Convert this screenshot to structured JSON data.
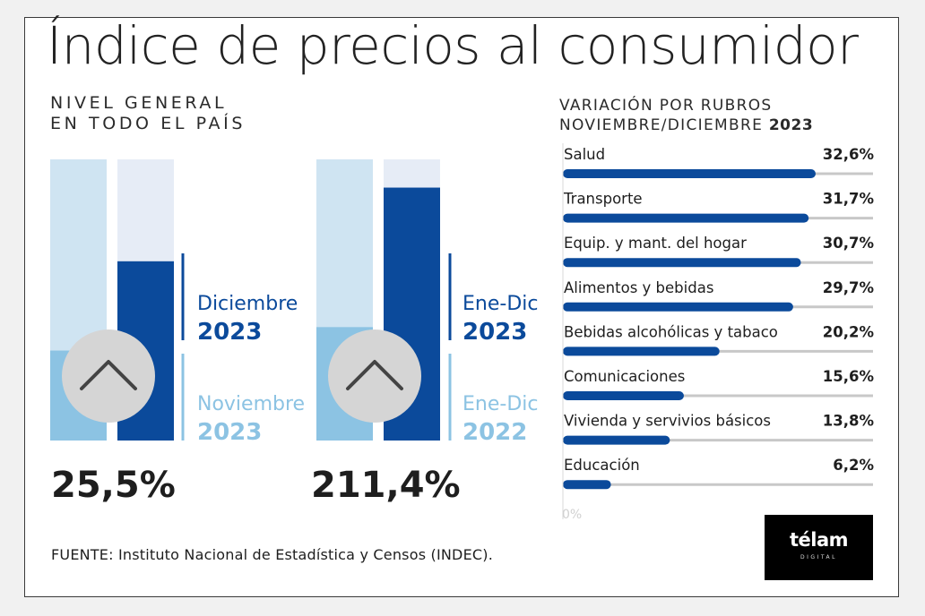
{
  "title": "Índice de precios al consumidor",
  "subtitle_left": [
    "NIVEL GENERAL",
    "EN TODO EL PAÍS"
  ],
  "subtitle_right": {
    "line1": "VARIACIÓN POR RUBROS",
    "line2": "NOVIEMBRE/DICIEMBRE",
    "year": "2023"
  },
  "footer": "FUENTE: Instituto Nacional de Estadística y Censos (INDEC).",
  "logo": {
    "text": "télam",
    "sub": "DIGITAL"
  },
  "colors": {
    "dark_blue": "#0b4a9b",
    "light_blue": "#8cc3e3",
    "pale_blue": "#cfe4f2",
    "paler_blue": "#e6ecf6",
    "track": "#c8c8c8",
    "circle": "#d5d5d5"
  },
  "chart_data": [
    {
      "type": "bar",
      "name": "monthly",
      "series": [
        {
          "name": "Noviembre 2023",
          "label": [
            "Noviembre",
            "2023"
          ],
          "value": 12.8,
          "color": "#8cc3e3"
        },
        {
          "name": "Diciembre 2023",
          "label": [
            "Diciembre",
            "2023"
          ],
          "value": 25.5,
          "color": "#0b4a9b"
        }
      ],
      "ylim": [
        0,
        40
      ],
      "headline": "25,5%",
      "icon": "chevron-up-icon"
    },
    {
      "type": "bar",
      "name": "annual",
      "series": [
        {
          "name": "Ene-Dic 2022",
          "label": [
            "Ene-Dic",
            "2022"
          ],
          "value": 94.8,
          "color": "#8cc3e3"
        },
        {
          "name": "Ene-Dic 2023",
          "label": [
            "Ene-Dic",
            "2023"
          ],
          "value": 211.4,
          "color": "#0b4a9b"
        }
      ],
      "ylim": [
        0,
        235
      ],
      "headline": "211,4%",
      "icon": "chevron-up-icon"
    },
    {
      "type": "bar",
      "orientation": "horizontal",
      "name": "rubros",
      "categories": [
        "Salud",
        "Transporte",
        "Equip. y mant. del hogar",
        "Alimentos y bebidas",
        "Bebidas alcohólicas y tabaco",
        "Comunicaciones",
        "Vivienda y servivios básicos",
        "Educación"
      ],
      "values": [
        32.6,
        31.7,
        30.7,
        29.7,
        20.2,
        15.6,
        13.8,
        6.2
      ],
      "value_labels": [
        "32,6%",
        "31,7%",
        "30,7%",
        "29,7%",
        "20,2%",
        "15,6%",
        "13,8%",
        "6,2%"
      ],
      "xlim": [
        0,
        40
      ],
      "axis_label": "0%"
    }
  ]
}
